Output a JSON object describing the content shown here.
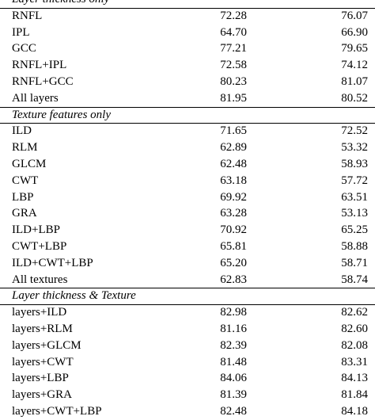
{
  "sections": [
    {
      "title": "Layer thickness only",
      "rows": [
        {
          "label": "RNFL",
          "v1": "72.28",
          "v2": "76.07"
        },
        {
          "label": "IPL",
          "v1": "64.70",
          "v2": "66.90"
        },
        {
          "label": "GCC",
          "v1": "77.21",
          "v2": "79.65"
        },
        {
          "label": "RNFL+IPL",
          "v1": "72.58",
          "v2": "74.12"
        },
        {
          "label": "RNFL+GCC",
          "v1": "80.23",
          "v2": "81.07"
        },
        {
          "label": "All layers",
          "v1": "81.95",
          "v2": "80.52"
        }
      ]
    },
    {
      "title": "Texture features only",
      "rows": [
        {
          "label": "ILD",
          "v1": "71.65",
          "v2": "72.52"
        },
        {
          "label": "RLM",
          "v1": "62.89",
          "v2": "53.32"
        },
        {
          "label": "GLCM",
          "v1": "62.48",
          "v2": "58.93"
        },
        {
          "label": "CWT",
          "v1": "63.18",
          "v2": "57.72"
        },
        {
          "label": "LBP",
          "v1": "69.92",
          "v2": "63.51"
        },
        {
          "label": "GRA",
          "v1": "63.28",
          "v2": "53.13"
        },
        {
          "label": "ILD+LBP",
          "v1": "70.92",
          "v2": "65.25"
        },
        {
          "label": "CWT+LBP",
          "v1": "65.81",
          "v2": "58.88"
        },
        {
          "label": "ILD+CWT+LBP",
          "v1": "65.20",
          "v2": "58.71"
        },
        {
          "label": "All textures",
          "v1": "62.83",
          "v2": "58.74"
        }
      ]
    },
    {
      "title": "Layer thickness & Texture",
      "rows": [
        {
          "label": "layers+ILD",
          "v1": "82.98",
          "v2": "82.62"
        },
        {
          "label": "layers+RLM",
          "v1": "81.16",
          "v2": "82.60"
        },
        {
          "label": "layers+GLCM",
          "v1": "82.39",
          "v2": "82.08"
        },
        {
          "label": "layers+CWT",
          "v1": "81.48",
          "v2": "83.31"
        },
        {
          "label": "layers+LBP",
          "v1": "84.06",
          "v2": "84.13"
        },
        {
          "label": "layers+GRA",
          "v1": "81.39",
          "v2": "81.84"
        },
        {
          "label": "layers+CWT+LBP",
          "v1": "82.48",
          "v2": "84.18"
        }
      ]
    }
  ]
}
